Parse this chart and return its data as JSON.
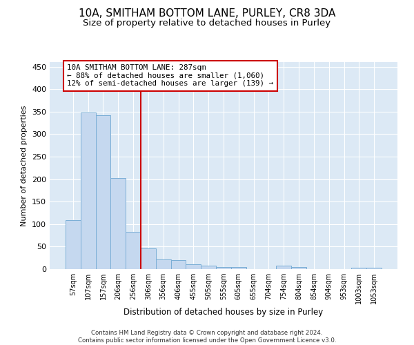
{
  "title": "10A, SMITHAM BOTTOM LANE, PURLEY, CR8 3DA",
  "subtitle": "Size of property relative to detached houses in Purley",
  "xlabel": "Distribution of detached houses by size in Purley",
  "ylabel": "Number of detached properties",
  "footnote": "Contains HM Land Registry data © Crown copyright and database right 2024.\nContains public sector information licensed under the Open Government Licence v3.0.",
  "bar_labels": [
    "57sqm",
    "107sqm",
    "157sqm",
    "206sqm",
    "256sqm",
    "306sqm",
    "356sqm",
    "406sqm",
    "455sqm",
    "505sqm",
    "555sqm",
    "605sqm",
    "655sqm",
    "704sqm",
    "754sqm",
    "804sqm",
    "854sqm",
    "904sqm",
    "953sqm",
    "1003sqm",
    "1053sqm"
  ],
  "bar_values": [
    109,
    348,
    342,
    202,
    83,
    46,
    22,
    20,
    10,
    7,
    5,
    5,
    0,
    0,
    8,
    5,
    0,
    0,
    0,
    3,
    3
  ],
  "bar_color": "#c5d8ef",
  "bar_edge_color": "#7aaed6",
  "reference_line_x": 4.5,
  "reference_line_label": "10A SMITHAM BOTTOM LANE: 287sqm",
  "annotation_line1": "← 88% of detached houses are smaller (1,060)",
  "annotation_line2": "12% of semi-detached houses are larger (139) →",
  "annotation_box_color": "#ffffff",
  "annotation_box_edge_color": "#cc0000",
  "reference_line_color": "#cc0000",
  "ylim": [
    0,
    460
  ],
  "yticks": [
    0,
    50,
    100,
    150,
    200,
    250,
    300,
    350,
    400,
    450
  ],
  "plot_bg_color": "#dce9f5",
  "grid_color": "#ffffff",
  "title_fontsize": 11,
  "subtitle_fontsize": 9.5
}
